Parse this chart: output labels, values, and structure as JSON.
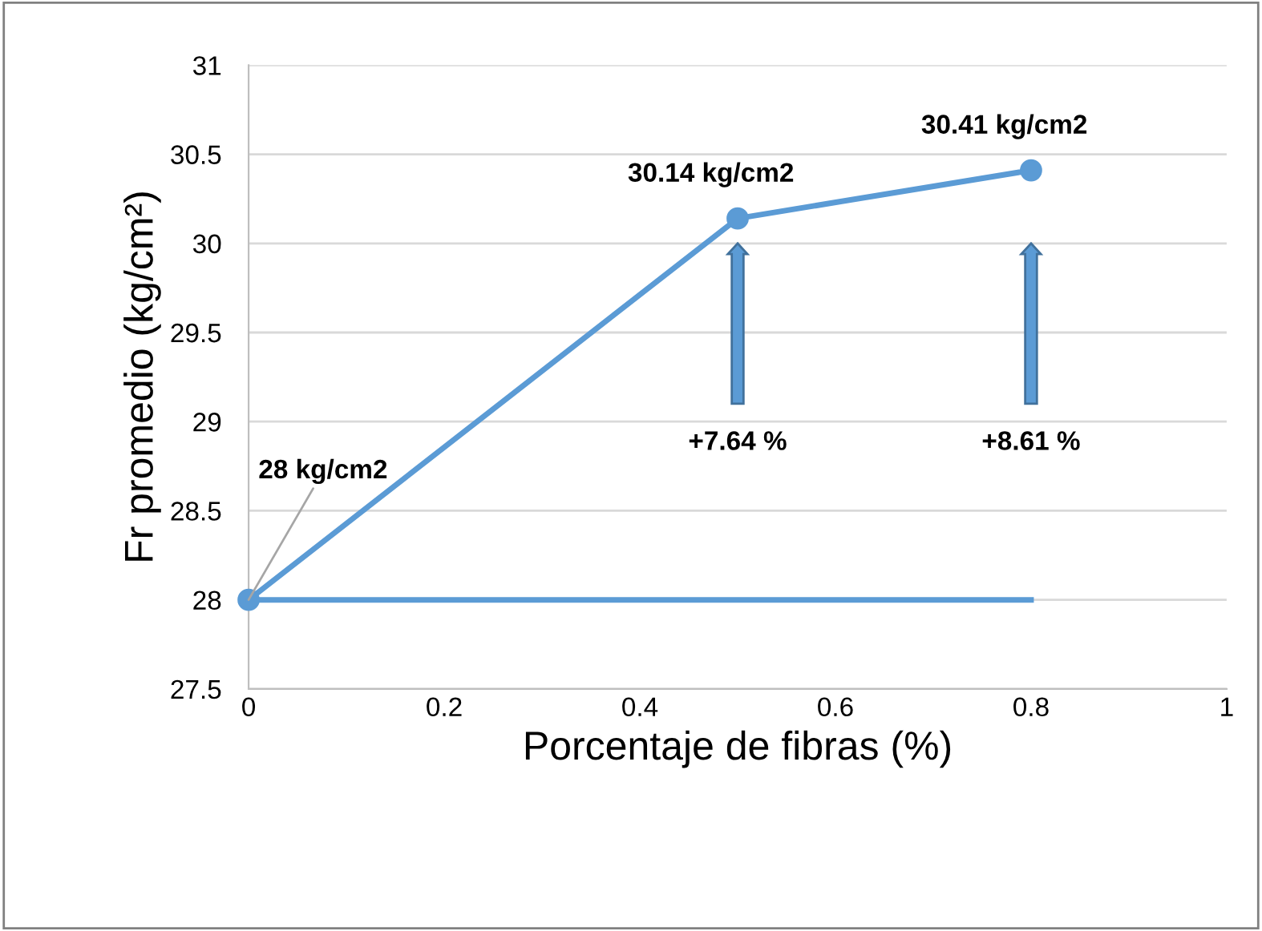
{
  "chart_data": {
    "type": "line",
    "xlabel": "Porcentaje de fibras (%)",
    "ylabel": "Fr promedio (kg/cm²)",
    "xlim": [
      0,
      1
    ],
    "xticks": [
      0,
      0.2,
      0.4,
      0.6,
      0.8,
      1
    ],
    "ylim": [
      27.5,
      31
    ],
    "yticks": [
      27.5,
      28,
      28.5,
      29,
      29.5,
      30,
      30.5,
      31
    ],
    "grid": "y",
    "legend": false,
    "series": [
      {
        "color": "#5b9bd5",
        "marker": "circle",
        "x": [
          0,
          0.5,
          0.8
        ],
        "values": [
          28,
          30.14,
          30.41
        ]
      },
      {
        "color": "#5b9bd5",
        "marker": "none",
        "x": [
          0,
          0.8
        ],
        "values": [
          28,
          28
        ]
      }
    ],
    "annotations": [
      {
        "text": "28 kg/cm2",
        "x": 0,
        "y": 28
      },
      {
        "text": "30.14 kg/cm2",
        "x": 0.5,
        "y": 30.14
      },
      {
        "text": "30.41 kg/cm2",
        "x": 0.8,
        "y": 30.41
      },
      "+7.64 %",
      "+8.61 %"
    ]
  }
}
